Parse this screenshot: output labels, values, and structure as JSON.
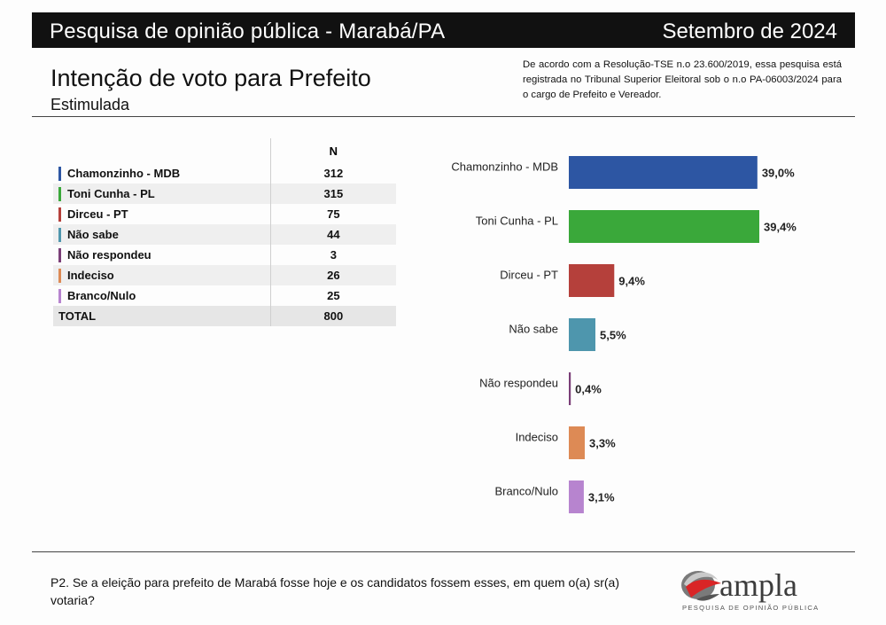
{
  "header": {
    "left_title": "Pesquisa de opinião pública - Marabá/PA",
    "right_title": "Setembro de 2024"
  },
  "title": "Intenção de voto para Prefeito",
  "subtitle": "Estimulada",
  "registration_note": "De acordo com a Resolução-TSE n.o 23.600/2019, essa pesquisa está registrada no Tribunal Superior Eleitoral sob o n.o PA-06003/2024 para o cargo de Prefeito e Vereador.",
  "table": {
    "column_header": "N",
    "rows": [
      {
        "label": "Chamonzinho - MDB",
        "n": "312",
        "color": "#2d56a3"
      },
      {
        "label": "Toni Cunha - PL",
        "n": "315",
        "color": "#3aa83a"
      },
      {
        "label": "Dirceu - PT",
        "n": "75",
        "color": "#b5403b"
      },
      {
        "label": "Não sabe",
        "n": "44",
        "color": "#4e96ad"
      },
      {
        "label": "Não respondeu",
        "n": "3",
        "color": "#7b3f78"
      },
      {
        "label": "Indeciso",
        "n": "26",
        "color": "#dd8a55"
      },
      {
        "label": "Branco/Nulo",
        "n": "25",
        "color": "#b784cf"
      }
    ],
    "total_label": "TOTAL",
    "total_n": "800"
  },
  "chart_data": {
    "type": "bar",
    "orientation": "horizontal",
    "categories": [
      "Chamonzinho - MDB",
      "Toni Cunha - PL",
      "Dirceu - PT",
      "Não sabe",
      "Não respondeu",
      "Indeciso",
      "Branco/Nulo"
    ],
    "values": [
      39.0,
      39.4,
      9.4,
      5.5,
      0.4,
      3.3,
      3.1
    ],
    "value_labels": [
      "39,0%",
      "39,4%",
      "9,4%",
      "5,5%",
      "0,4%",
      "3,3%",
      "3,1%"
    ],
    "colors": [
      "#2d56a3",
      "#3aa83a",
      "#b5403b",
      "#4e96ad",
      "#7b3f78",
      "#dd8a55",
      "#b784cf"
    ],
    "xlim": [
      0,
      40
    ],
    "grid": false
  },
  "question": "P2. Se a eleição para prefeito de Marabá fosse hoje e os candidatos fossem esses, em quem o(a) sr(a) votaria?",
  "logo": {
    "name": "ampla",
    "tagline": "PESQUISA DE OPINIÃO PÚBLICA"
  }
}
